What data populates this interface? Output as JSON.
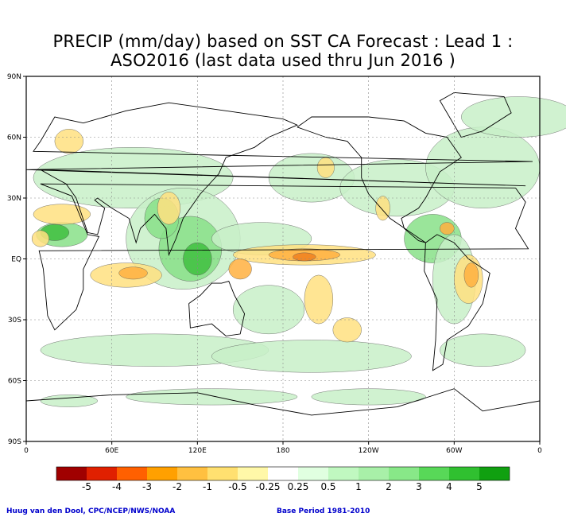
{
  "title_line1": "PRECIP (mm/day) based on SST CA Forecast : Lead 1 :",
  "title_line2": "ASO2016 (last data used thru Jun 2016 )",
  "lat_ticks": [
    "90N",
    "60N",
    "30N",
    "EQ",
    "30S",
    "60S",
    "90S"
  ],
  "lon_ticks": [
    "0",
    "60E",
    "120E",
    "180",
    "120W",
    "60W",
    "0"
  ],
  "colorbar": {
    "colors": [
      "#a00000",
      "#e02000",
      "#ff6000",
      "#ffa000",
      "#ffc040",
      "#ffe070",
      "#fff8a8",
      "#ffffff",
      "#e0ffe0",
      "#c0f8c0",
      "#a8f0a8",
      "#88e888",
      "#58d858",
      "#30c030",
      "#10a010"
    ],
    "labels": [
      "-5",
      "-4",
      "-3",
      "-2",
      "-1",
      "-0.5",
      "-0.25",
      "0.25",
      "0.5",
      "1",
      "2",
      "3",
      "4",
      "5"
    ]
  },
  "credit_left": "Huug van den Dool, CPC/NCEP/NWS/NOAA",
  "credit_right": "Base Period 1981-2010",
  "map_colors": {
    "ocean": "#ffffff",
    "coast": "#000000",
    "grid": "#888888",
    "wet_light": "#c8f0c8",
    "wet_mid": "#88e088",
    "wet_strong": "#40c040",
    "dry_light": "#ffe080",
    "dry_mid": "#ffb040",
    "dry_strong": "#f08020"
  }
}
